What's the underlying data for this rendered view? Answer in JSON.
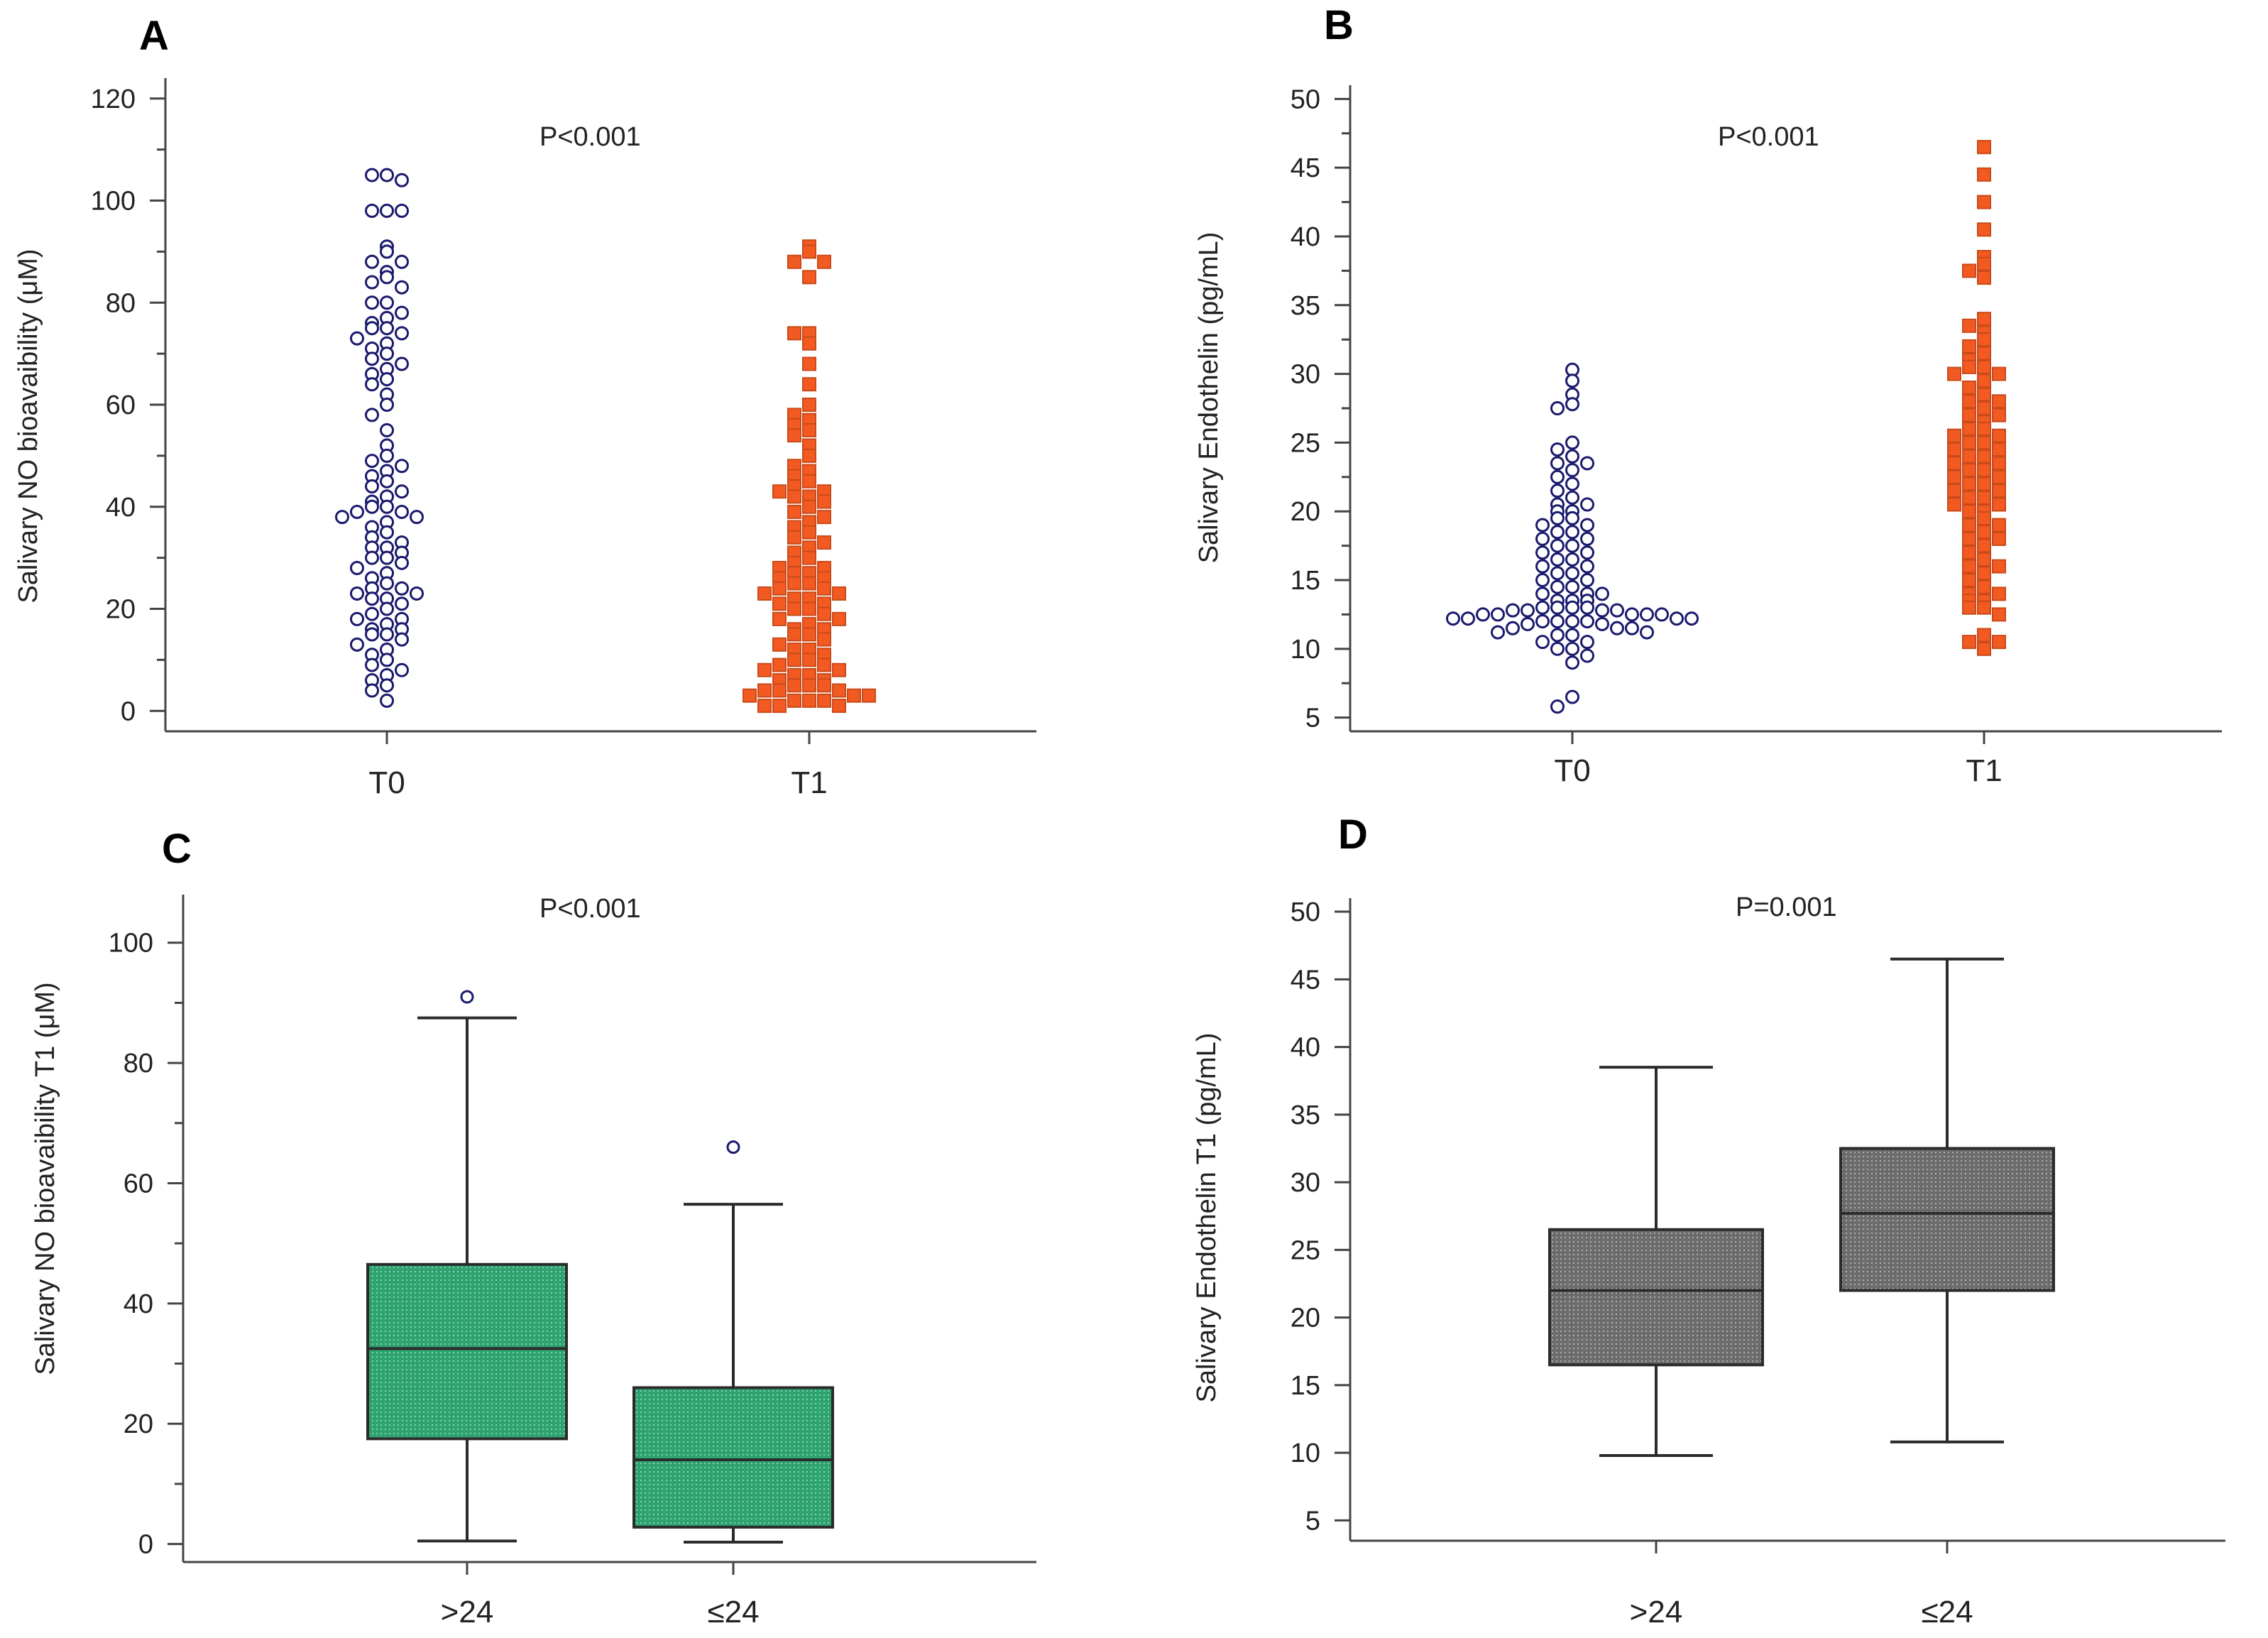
{
  "figure": {
    "background": "#ffffff"
  },
  "chart_data": [
    {
      "id": "A",
      "type": "scatter",
      "panel_label": "A",
      "annotation": "P<0.001",
      "ylabel": "Salivary NO bioavaibility (μM)",
      "categories": [
        "T0",
        "T1"
      ],
      "ylim": [
        -4,
        124
      ],
      "yticks": [
        0,
        20,
        40,
        60,
        80,
        100,
        120
      ],
      "series": [
        {
          "name": "T0",
          "marker": "circle",
          "color": "#1a1a6e",
          "fill": "#ffffff",
          "values": [
            105,
            105,
            104,
            98,
            98,
            98,
            91,
            90,
            88,
            88,
            86,
            85,
            84,
            83,
            80,
            80,
            78,
            77,
            76,
            75,
            75,
            74,
            73,
            72,
            71,
            70,
            69,
            68,
            67,
            66,
            65,
            64,
            62,
            60,
            58,
            55,
            52,
            50,
            49,
            48,
            47,
            46,
            45,
            44,
            43,
            42,
            41,
            40,
            40,
            39,
            39,
            38,
            38,
            37,
            36,
            35,
            34,
            33,
            32,
            32,
            31,
            30,
            30,
            29,
            28,
            27,
            26,
            25,
            24,
            24,
            23,
            23,
            22,
            22,
            21,
            20,
            19,
            18,
            18,
            17,
            16,
            16,
            15,
            15,
            14,
            13,
            12,
            11,
            10,
            9,
            8,
            7,
            6,
            5,
            4,
            2
          ]
        },
        {
          "name": "T1",
          "marker": "square",
          "color": "#c94a1a",
          "fill": "#f25a22",
          "values": [
            91,
            90,
            88,
            88,
            85,
            74,
            74,
            72,
            68,
            64,
            60,
            58,
            57,
            56,
            55,
            54,
            52,
            50,
            48,
            47,
            46,
            45,
            44,
            43,
            43,
            42,
            42,
            41,
            40,
            39,
            38,
            37,
            36,
            35,
            34,
            33,
            32,
            31,
            30,
            29,
            28,
            28,
            27,
            27,
            26,
            26,
            25,
            25,
            24,
            24,
            23,
            23,
            22,
            22,
            21,
            21,
            20,
            20,
            19,
            18,
            18,
            17,
            16,
            16,
            15,
            15,
            14,
            13,
            12,
            12,
            11,
            10,
            10,
            9,
            9,
            8,
            8,
            7,
            7,
            6,
            6,
            5,
            5,
            5,
            4,
            4,
            4,
            3,
            3,
            3,
            2,
            2,
            2,
            1,
            1,
            1
          ]
        }
      ]
    },
    {
      "id": "B",
      "type": "scatter",
      "panel_label": "B",
      "annotation": "P<0.001",
      "ylabel": "Salivary Endothelin (pg/mL)",
      "categories": [
        "T0",
        "T1"
      ],
      "ylim": [
        4,
        51
      ],
      "yticks": [
        5,
        10,
        15,
        20,
        25,
        30,
        35,
        40,
        45,
        50
      ],
      "series": [
        {
          "name": "T0",
          "marker": "circle",
          "color": "#1a1a6e",
          "fill": "#ffffff",
          "values": [
            30.3,
            29.5,
            28.5,
            27.8,
            27.5,
            25,
            24.5,
            24,
            23.5,
            23.5,
            23,
            22.5,
            22,
            21.5,
            21,
            20.5,
            20.5,
            20,
            20,
            19.5,
            19.5,
            19,
            19,
            18.5,
            18.5,
            18,
            18,
            17.5,
            17.5,
            17,
            17,
            16.5,
            16.5,
            16,
            16,
            15.5,
            15.5,
            15,
            15,
            14.5,
            14.5,
            14,
            14,
            14,
            13.5,
            13.5,
            13.5,
            13,
            13,
            13,
            13,
            12.8,
            12.8,
            12.8,
            12.8,
            12.5,
            12.5,
            12.5,
            12.5,
            12.5,
            12.2,
            12.2,
            12.2,
            12.2,
            12,
            12,
            12,
            12,
            11.8,
            11.8,
            11.5,
            11.5,
            11.5,
            11.2,
            11.2,
            11,
            11,
            10.5,
            10.5,
            10,
            10,
            9.5,
            9,
            6.5,
            5.8
          ]
        },
        {
          "name": "T1",
          "marker": "square",
          "color": "#c94a1a",
          "fill": "#f25a22",
          "values": [
            46.5,
            44.5,
            42.5,
            40.5,
            38.5,
            38,
            37.5,
            37,
            34,
            33.5,
            33,
            32.5,
            32,
            31.5,
            31,
            30.5,
            30.5,
            30,
            30,
            29.5,
            29,
            28.5,
            28,
            28,
            27.5,
            27,
            27,
            26.5,
            26,
            26,
            25.5,
            25.5,
            25,
            25,
            24.5,
            24.5,
            24,
            24,
            23.5,
            23.5,
            23,
            23,
            22.5,
            22.5,
            22,
            22,
            21.5,
            21.5,
            21,
            21,
            20.5,
            20.5,
            20,
            20,
            19.5,
            19,
            19,
            18.5,
            18,
            18,
            17.5,
            17,
            16.5,
            16,
            16,
            15.5,
            15,
            14.5,
            14,
            14,
            13.5,
            13.5,
            13,
            13,
            12.5,
            11,
            10.5,
            10.5,
            10
          ]
        }
      ]
    },
    {
      "id": "C",
      "type": "box",
      "panel_label": "C",
      "annotation": "P<0.001",
      "ylabel": "Salivary NO bioavaibility  T1 (μM)",
      "categories": [
        ">24",
        "≤24"
      ],
      "ylim": [
        -3,
        108
      ],
      "yticks": [
        0,
        20,
        40,
        60,
        80,
        100
      ],
      "box_color": "#2ea36f",
      "box_edge": "#2b2b2b",
      "series": [
        {
          "name": ">24",
          "whisker_low": 0.5,
          "q1": 17.5,
          "median": 32.5,
          "q3": 46.5,
          "whisker_high": 87.5,
          "outliers": [
            91
          ]
        },
        {
          "name": "≤24",
          "whisker_low": 0.3,
          "q1": 2.8,
          "median": 14,
          "q3": 26,
          "whisker_high": 56.5,
          "outliers": [
            66
          ]
        }
      ]
    },
    {
      "id": "D",
      "type": "box",
      "panel_label": "D",
      "annotation": "P=0.001",
      "ylabel": "Salivary Endothelin  T1 (pg/mL)",
      "categories": [
        ">24",
        "≤24"
      ],
      "ylim": [
        3.5,
        51
      ],
      "yticks": [
        5,
        10,
        15,
        20,
        25,
        30,
        35,
        40,
        45,
        50
      ],
      "box_color": "#7a7a7a",
      "box_edge": "#2b2b2b",
      "series": [
        {
          "name": ">24",
          "whisker_low": 9.8,
          "q1": 16.5,
          "median": 22,
          "q3": 26.5,
          "whisker_high": 38.5,
          "outliers": []
        },
        {
          "name": "≤24",
          "whisker_low": 10.8,
          "q1": 22,
          "median": 27.7,
          "q3": 32.5,
          "whisker_high": 46.5,
          "outliers": []
        }
      ]
    }
  ]
}
